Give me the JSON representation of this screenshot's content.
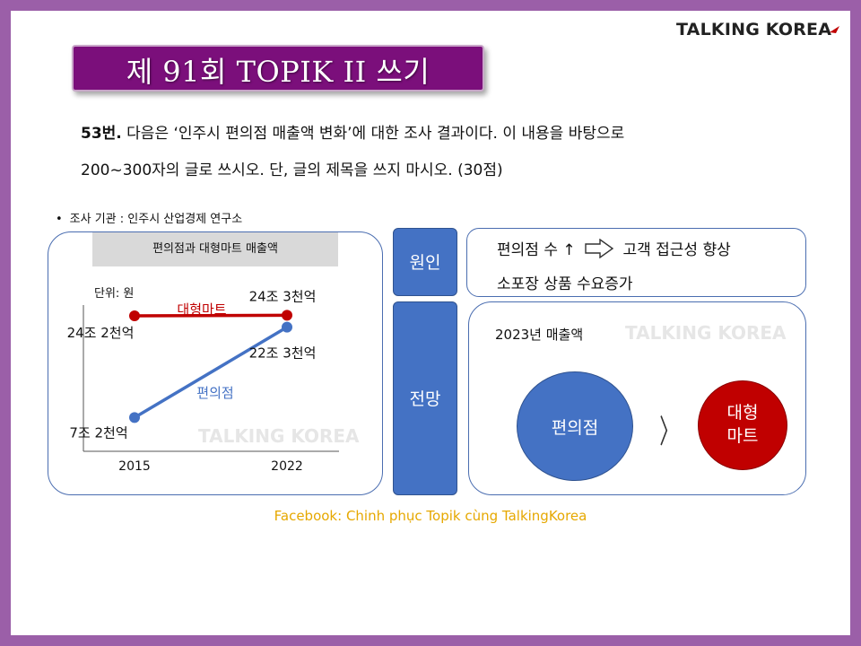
{
  "brand": {
    "logo_text": "TALKING KORE",
    "logo_mark": "A"
  },
  "header": {
    "title": "제 91회 TOPIK II 쓰기"
  },
  "question": {
    "number": "53번.",
    "line1": " 다음은 ‘인주시 편의점 매출액 변화’에 대한 조사 결과이다. 이 내용을 바탕으로",
    "line2": "200~300자의 글로 쓰시오. 단, 글의 제목을 쓰지 마시오. (30점)"
  },
  "survey": {
    "bullet": "•",
    "text": "조사 기관 : 인주시 산업경제 연구소"
  },
  "chart_data": {
    "type": "line",
    "title": "편의점과 대형마트 매출액",
    "unit_label": "단위: 원",
    "categories": [
      "2015",
      "2022"
    ],
    "series": [
      {
        "name": "대형마트",
        "values": [
          "24조 2천억",
          "24조 3천억"
        ],
        "numeric": [
          24.2,
          24.3
        ],
        "color": "#c00000"
      },
      {
        "name": "편의점",
        "values": [
          "7조 2천억",
          "22조 3천억"
        ],
        "numeric": [
          7.2,
          22.3
        ],
        "color": "#4472c4"
      }
    ],
    "grid": false
  },
  "cause": {
    "tag": "원인",
    "line1_left": "편의점 수 ↑",
    "line1_right": "고객 접근성 향상",
    "line2": "소포장 상품 수요증가"
  },
  "outlook": {
    "tag": "전망",
    "label": "2023년 매출액",
    "left_circle": "편의점",
    "comparator": "〉",
    "right_circle_line1": "대형",
    "right_circle_line2": "마트"
  },
  "watermark": "TALKING KOREA",
  "footer": "Facebook: Chinh phục Topik cùng TalkingKorea",
  "colors": {
    "frame": "#9b5fa8",
    "banner": "#7b0f7b",
    "blue": "#4472c4",
    "red": "#c00000",
    "footer": "#e6a800"
  }
}
